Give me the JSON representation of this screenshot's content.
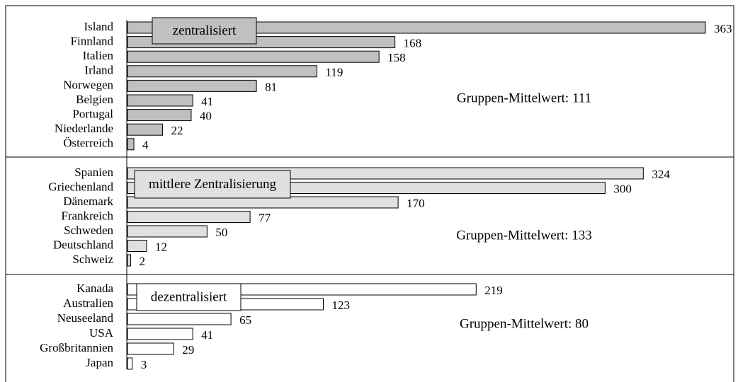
{
  "chart_data": {
    "type": "bar",
    "groups": [
      {
        "label": "zentralisiert",
        "annotation": "Gruppen-Mittelwert: 111",
        "color": "#c0c0c0",
        "categories": [
          "Island",
          "Finnland",
          "Italien",
          "Irland",
          "Norwegen",
          "Belgien",
          "Portugal",
          "Niederlande",
          "Österreich"
        ],
        "values": [
          363,
          168,
          158,
          119,
          81,
          41,
          40,
          22,
          4
        ]
      },
      {
        "label": "mittlere Zentralisierung",
        "annotation": "Gruppen-Mittelwert: 133",
        "color": "#e0e0e0",
        "categories": [
          "Spanien",
          "Griechenland",
          "Dänemark",
          "Frankreich",
          "Schweden",
          "Deutschland",
          "Schweiz"
        ],
        "values": [
          324,
          300,
          170,
          77,
          50,
          12,
          2
        ]
      },
      {
        "label": "dezentralisiert",
        "annotation": "Gruppen-Mittelwert: 80",
        "color": "#ffffff",
        "categories": [
          "Kanada",
          "Australien",
          "Neuseeland",
          "USA",
          "Großbritannien",
          "Japan"
        ],
        "values": [
          219,
          123,
          65,
          41,
          29,
          3
        ]
      }
    ]
  }
}
